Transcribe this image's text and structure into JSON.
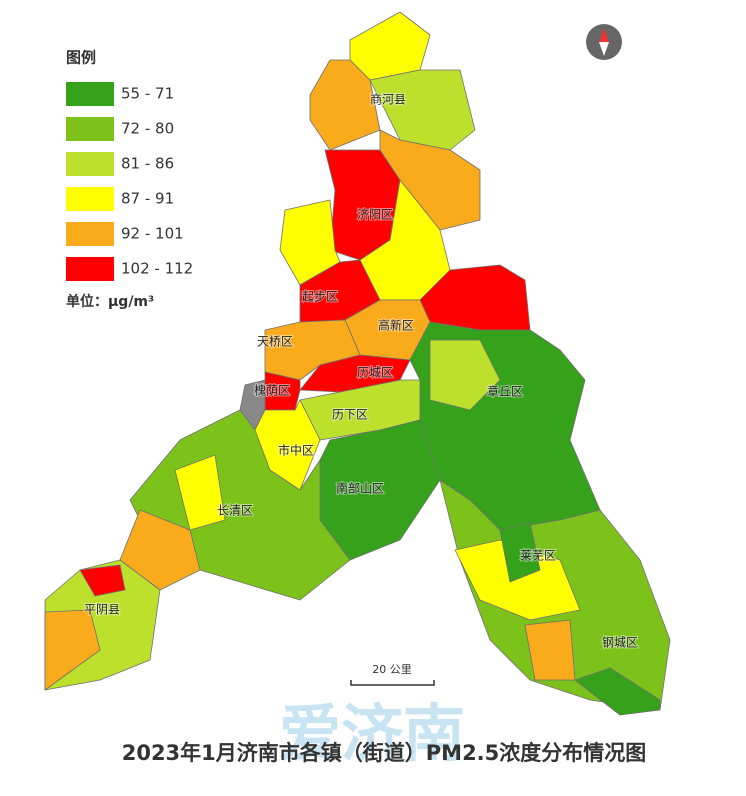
{
  "legend": {
    "title": "图例",
    "items": [
      {
        "label": "55 - 71",
        "color": "#36a11a"
      },
      {
        "label": "72 - 80",
        "color": "#7dc21a"
      },
      {
        "label": "81 - 86",
        "color": "#bde02c"
      },
      {
        "label": "87 - 91",
        "color": "#ffff00"
      },
      {
        "label": "92 - 101",
        "color": "#f9ab1b"
      },
      {
        "label": "102 - 112",
        "color": "#ff0000"
      }
    ]
  },
  "unit": "单位：μg/m³",
  "districts": [
    "商河县",
    "济阳区",
    "起步区",
    "高新区",
    "天桥区",
    "历城区",
    "槐荫区",
    "历下区",
    "市中区",
    "章丘区",
    "南部山区",
    "长清区",
    "莱芜区",
    "平阴县",
    "钢城区"
  ],
  "scale_bar": "20 公里",
  "watermark": "爱济南",
  "title": "2023年1月济南市各镇（街道）PM2.5浓度分布情况图"
}
